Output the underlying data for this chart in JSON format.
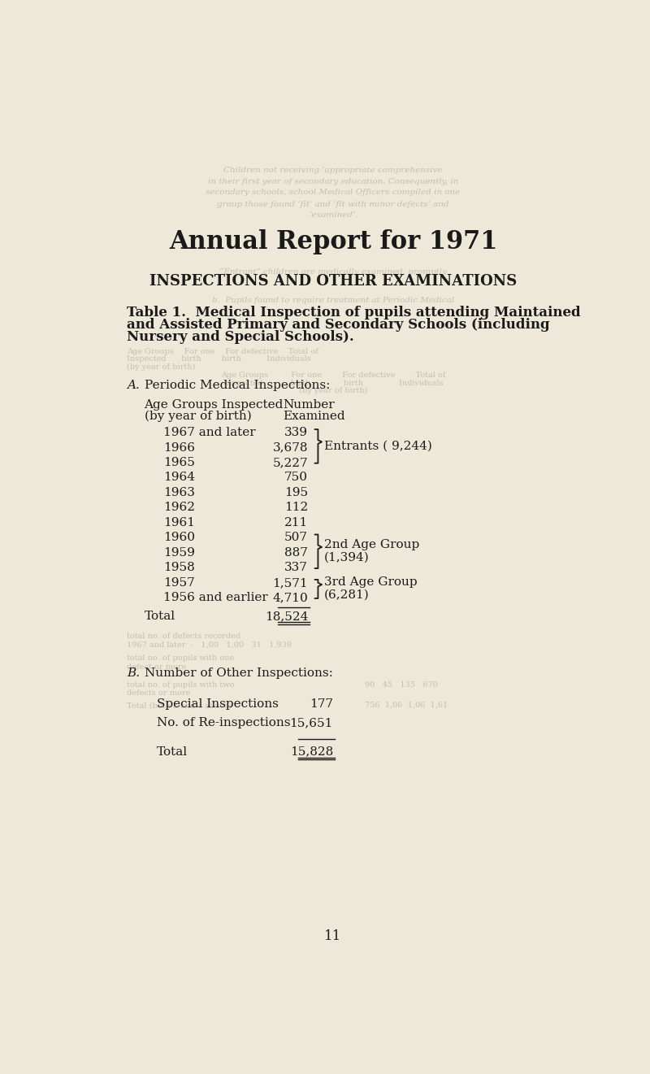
{
  "bg_color": "#ede8d8",
  "text_color": "#1a1a1a",
  "ghost_color": "#c5bfaf",
  "main_title": "Annual Report for 1971",
  "section_title": "INSPECTIONS AND OTHER EXAMINATIONS",
  "table_title_line1": "Table 1.  Medical Inspection of pupils attending Maintained",
  "table_title_line2": "and Assisted Primary and Secondary Schools (including",
  "table_title_line3": "Nursery and Special Schools).",
  "section_a_label": "A.",
  "section_a_title": "Periodic Medical Inspections:",
  "col1_header_line1": "Age Groups Inspected",
  "col1_header_line2": "(by year of birth)",
  "col2_header_line1": "Number",
  "col2_header_line2": "Examined",
  "age_groups": [
    "1967 and later",
    "1966",
    "1965",
    "1964",
    "1963",
    "1962",
    "1961",
    "1960",
    "1959",
    "1958",
    "1957",
    "1956 and earlier"
  ],
  "numbers": [
    "339",
    "3,678",
    "5,227",
    "750",
    "195",
    "112",
    "211",
    "507",
    "887",
    "337",
    "1,571",
    "4,710"
  ],
  "total_label": "Total",
  "total_value": "18,524",
  "brace_entrants_label": "Entrants ( 9,244)",
  "brace_2nd_label_line1": "2nd Age Group",
  "brace_2nd_label_line2": "(1,394)",
  "brace_3rd_label_line1": "3rd Age Group",
  "brace_3rd_label_line2": "(6,281)",
  "section_b_label": "B.",
  "section_b_title": "Number of Other Inspections:",
  "b_items": [
    [
      "Special Inspections",
      "177"
    ],
    [
      "No. of Re-inspections",
      "15,651"
    ]
  ],
  "b_total_label": "Total",
  "b_total_value": "15,828",
  "page_number": "11"
}
